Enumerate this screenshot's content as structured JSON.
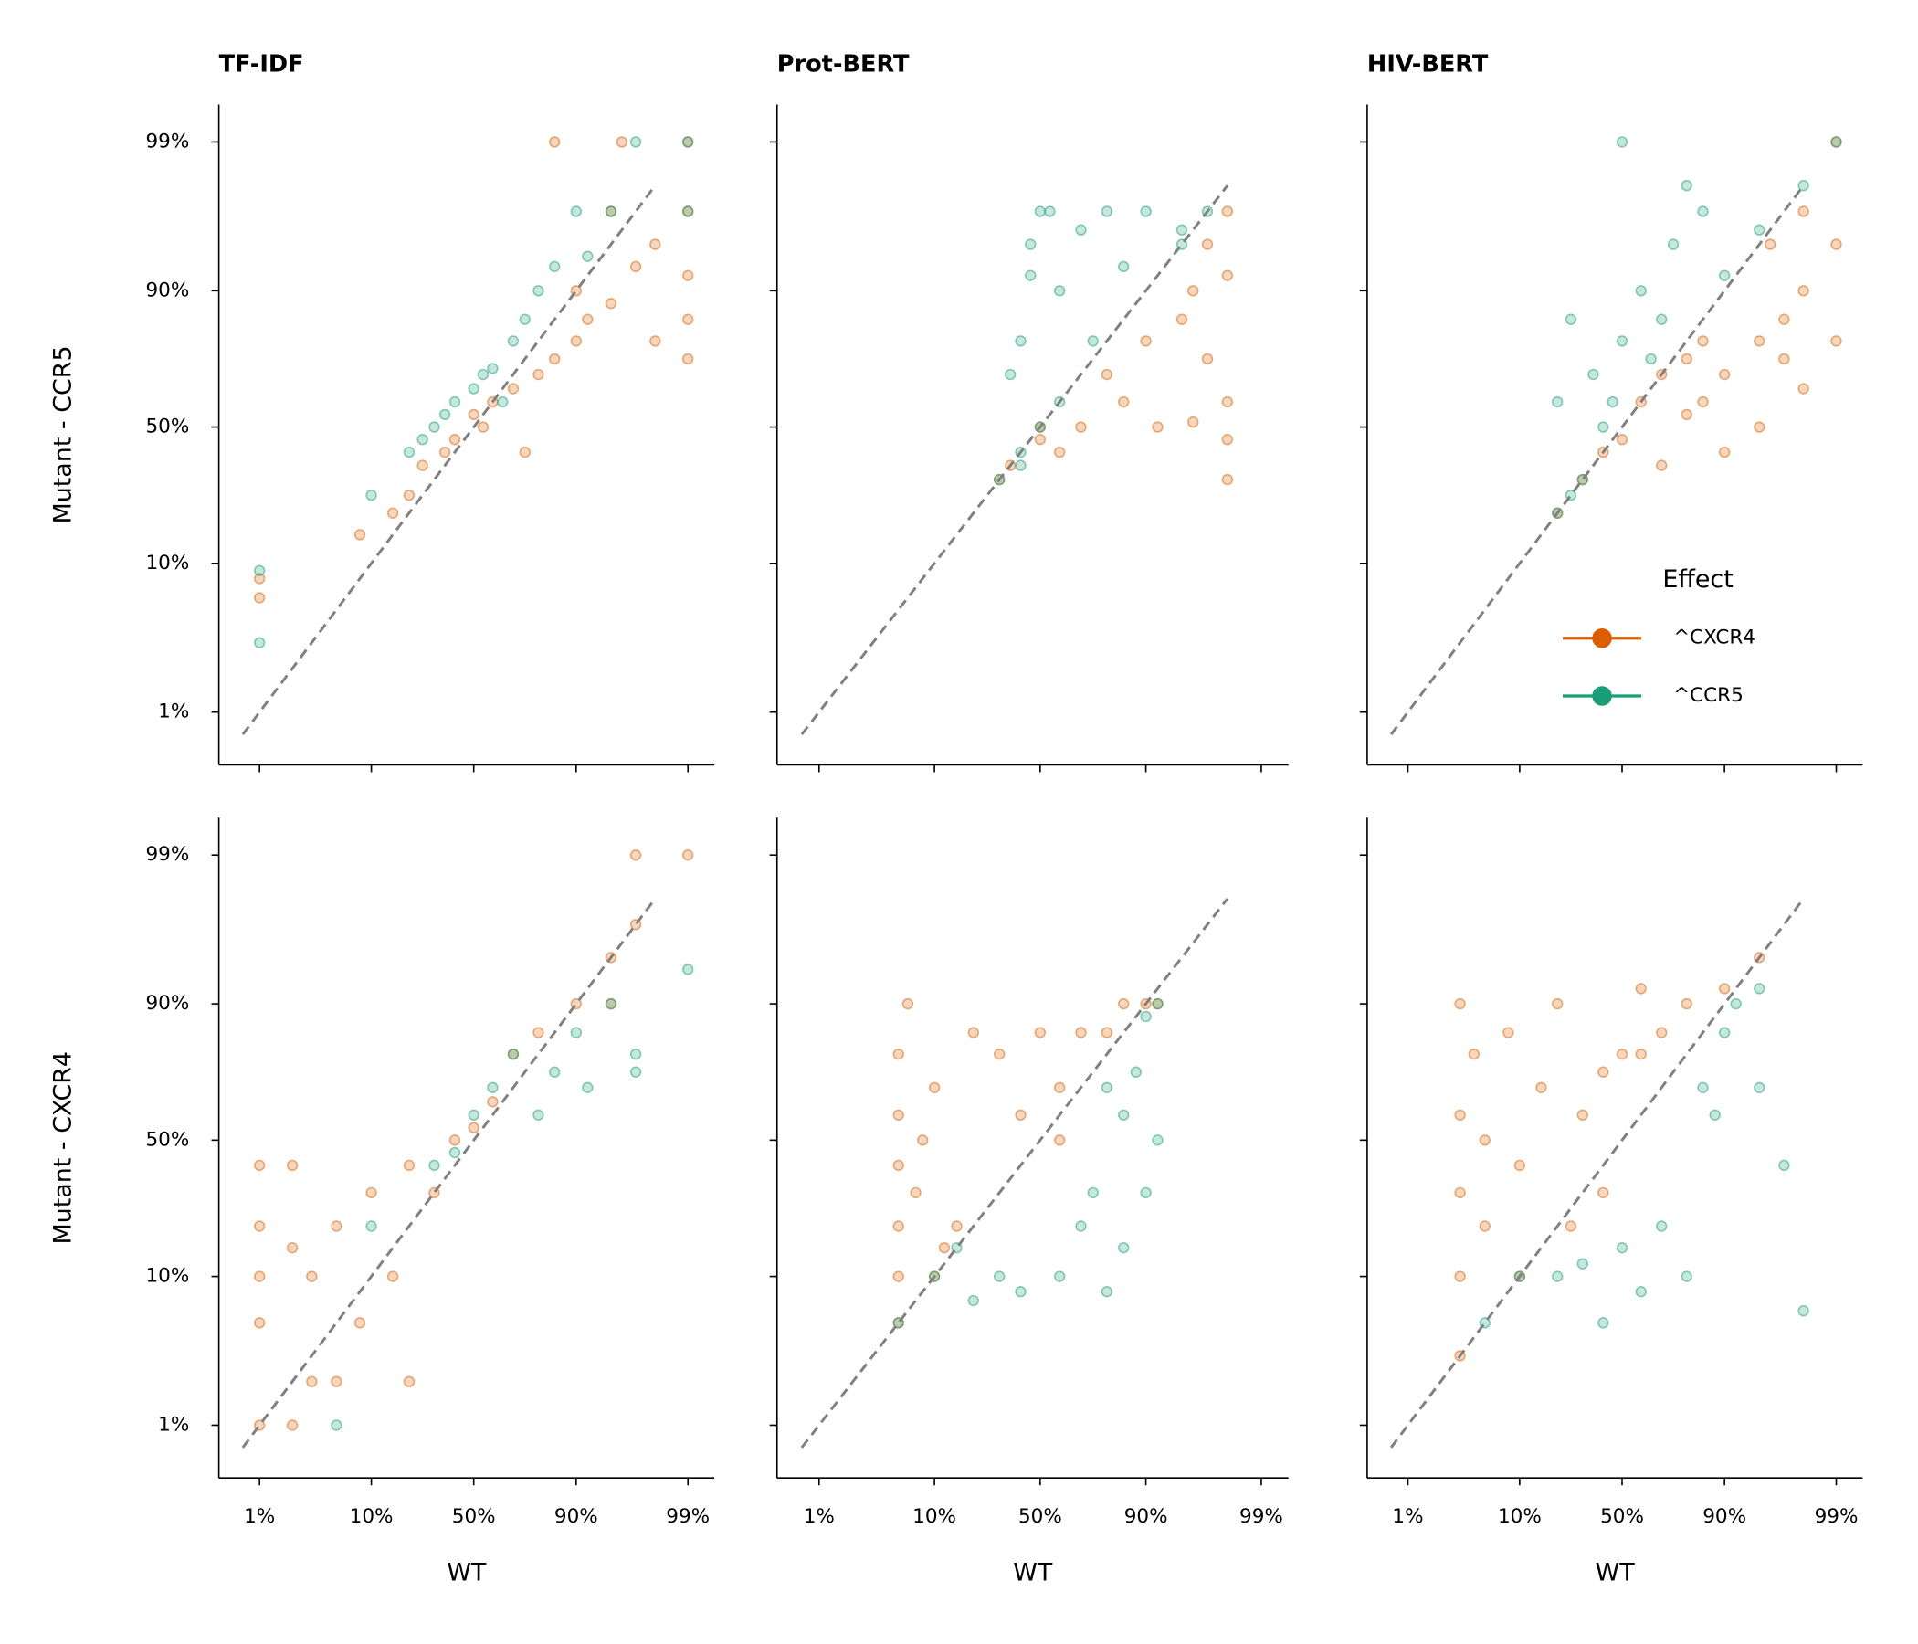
{
  "chart_data": [
    {
      "type": "scatter",
      "title": "TF-IDF",
      "ylabel": "Mutant - CCR5",
      "scale": "logit",
      "xlim": [
        0.42,
        99.43
      ],
      "ylim": [
        0.43,
        99.45
      ],
      "xticks": [
        1,
        10,
        50,
        90,
        99
      ],
      "yticks": [
        {
          "value": 1,
          "label": "1%"
        },
        {
          "value": 10,
          "label": "10%"
        },
        {
          "value": 50,
          "label": "50%"
        },
        {
          "value": 90,
          "label": "90%"
        },
        {
          "value": 99,
          "label": "99%"
        }
      ],
      "reference_line": {
        "from": 0.7,
        "to": 98,
        "color": "#808080",
        "dashed": true
      },
      "series": [
        {
          "color": "#d95f02",
          "x": [
            1,
            1,
            8,
            15,
            20,
            25,
            35,
            40,
            50,
            55,
            60,
            70,
            75,
            80,
            85,
            90,
            90,
            92,
            95,
            95,
            97,
            98,
            98,
            99,
            99,
            99,
            99,
            99,
            96,
            85
          ],
          "values": [
            6,
            8,
            15,
            20,
            25,
            35,
            40,
            45,
            55,
            50,
            60,
            65,
            40,
            70,
            75,
            80,
            90,
            85,
            88,
            97,
            93,
            80,
            95,
            75,
            85,
            92,
            97,
            99,
            99,
            99
          ]
        },
        {
          "color": "#1b9e77",
          "x": [
            1,
            1,
            10,
            20,
            25,
            30,
            35,
            40,
            50,
            55,
            60,
            65,
            70,
            75,
            80,
            85,
            90,
            92,
            95,
            97,
            99,
            99
          ],
          "values": [
            9,
            3,
            25,
            40,
            45,
            50,
            55,
            60,
            65,
            70,
            72,
            60,
            80,
            85,
            90,
            93,
            97,
            94,
            97,
            99,
            99,
            97
          ]
        }
      ]
    },
    {
      "type": "scatter",
      "title": "Prot-BERT",
      "scale": "logit",
      "xlim": [
        0.42,
        99.43
      ],
      "ylim": [
        0.43,
        99.45
      ],
      "xticks": [
        1,
        10,
        50,
        90,
        99
      ],
      "yticks": [
        1,
        10,
        50,
        90,
        99
      ],
      "reference_line": {
        "from": 0.7,
        "to": 98,
        "color": "#808080",
        "dashed": true
      },
      "series": [
        {
          "color": "#d95f02",
          "x": [
            30,
            35,
            50,
            50,
            60,
            70,
            80,
            85,
            90,
            92,
            95,
            96,
            97,
            98,
            98,
            98,
            98,
            97,
            98,
            96
          ],
          "values": [
            30,
            35,
            50,
            45,
            40,
            50,
            70,
            60,
            80,
            50,
            85,
            90,
            95,
            97,
            60,
            30,
            45,
            75,
            92,
            52
          ]
        },
        {
          "color": "#1b9e77",
          "x": [
            30,
            40,
            50,
            40,
            35,
            45,
            50,
            55,
            60,
            70,
            80,
            90,
            95,
            97,
            60,
            45,
            75,
            85,
            40,
            95
          ],
          "values": [
            30,
            40,
            50,
            80,
            70,
            95,
            97,
            97,
            90,
            96,
            97,
            97,
            96,
            97,
            60,
            92,
            80,
            93,
            35,
            95
          ]
        }
      ]
    },
    {
      "type": "scatter",
      "title": "HIV-BERT",
      "scale": "logit",
      "xlim": [
        0.42,
        99.43
      ],
      "ylim": [
        0.43,
        99.45
      ],
      "xticks": [
        1,
        10,
        50,
        90,
        99
      ],
      "yticks": [
        1,
        10,
        50,
        90,
        99
      ],
      "reference_line": {
        "from": 0.7,
        "to": 98,
        "color": "#808080",
        "dashed": true
      },
      "legend": {
        "title": "Effect",
        "loc": "lower right"
      },
      "series": [
        {
          "name": "^CXCR4",
          "color": "#d95f02",
          "x": [
            20,
            30,
            40,
            50,
            60,
            70,
            80,
            85,
            90,
            95,
            97,
            98,
            99,
            99,
            98,
            97,
            95,
            90,
            80,
            70,
            85,
            99,
            98,
            96
          ],
          "values": [
            20,
            30,
            40,
            45,
            60,
            70,
            75,
            80,
            70,
            80,
            85,
            90,
            95,
            99,
            97,
            75,
            50,
            40,
            55,
            35,
            60,
            80,
            65,
            95
          ]
        },
        {
          "name": "^CCR5",
          "color": "#1b9e77",
          "x": [
            20,
            25,
            30,
            20,
            25,
            35,
            40,
            50,
            60,
            70,
            80,
            85,
            90,
            95,
            99,
            50,
            75,
            65,
            45,
            98
          ],
          "values": [
            20,
            25,
            30,
            60,
            85,
            70,
            50,
            80,
            90,
            85,
            98,
            97,
            92,
            96,
            99,
            99,
            95,
            75,
            60,
            98
          ]
        }
      ]
    },
    {
      "type": "scatter",
      "ylabel": "Mutant - CXCR4",
      "xlabel": "WT",
      "scale": "logit",
      "xlim": [
        0.42,
        99.43
      ],
      "ylim": [
        0.43,
        99.45
      ],
      "xticks": [
        {
          "value": 1,
          "label": "1%"
        },
        {
          "value": 10,
          "label": "10%"
        },
        {
          "value": 50,
          "label": "50%"
        },
        {
          "value": 90,
          "label": "90%"
        },
        {
          "value": 99,
          "label": "99%"
        }
      ],
      "yticks": [
        {
          "value": 1,
          "label": "1%"
        },
        {
          "value": 10,
          "label": "10%"
        },
        {
          "value": 50,
          "label": "50%"
        },
        {
          "value": 90,
          "label": "90%"
        },
        {
          "value": 99,
          "label": "99%"
        }
      ],
      "reference_line": {
        "from": 0.7,
        "to": 98,
        "color": "#808080",
        "dashed": true
      },
      "series": [
        {
          "color": "#d95f02",
          "x": [
            1,
            1,
            1,
            1,
            1,
            2,
            2,
            2,
            3,
            3,
            5,
            5,
            8,
            10,
            15,
            20,
            20,
            30,
            40,
            50,
            60,
            70,
            80,
            90,
            95,
            97,
            99,
            97,
            95
          ],
          "values": [
            1,
            5,
            10,
            20,
            40,
            1,
            15,
            40,
            2,
            10,
            2,
            20,
            5,
            30,
            10,
            2,
            40,
            30,
            50,
            55,
            65,
            80,
            85,
            90,
            95,
            97,
            99,
            99,
            90
          ]
        },
        {
          "color": "#1b9e77",
          "x": [
            5,
            10,
            30,
            40,
            50,
            60,
            70,
            80,
            85,
            90,
            92,
            95,
            97,
            99,
            97
          ],
          "values": [
            1,
            20,
            40,
            45,
            60,
            70,
            80,
            60,
            75,
            85,
            70,
            90,
            80,
            94,
            75
          ]
        }
      ]
    },
    {
      "type": "scatter",
      "xlabel": "WT",
      "scale": "logit",
      "xlim": [
        0.42,
        99.43
      ],
      "ylim": [
        0.43,
        99.45
      ],
      "xticks": [
        {
          "value": 1,
          "label": "1%"
        },
        {
          "value": 10,
          "label": "10%"
        },
        {
          "value": 50,
          "label": "50%"
        },
        {
          "value": 90,
          "label": "90%"
        },
        {
          "value": 99,
          "label": "99%"
        }
      ],
      "yticks": [
        1,
        10,
        50,
        90,
        99
      ],
      "reference_line": {
        "from": 0.7,
        "to": 98,
        "color": "#808080",
        "dashed": true
      },
      "series": [
        {
          "color": "#d95f02",
          "x": [
            5,
            5,
            5,
            5,
            5,
            5,
            6,
            7,
            8,
            10,
            10,
            12,
            15,
            20,
            30,
            50,
            60,
            70,
            80,
            85,
            90,
            92,
            60,
            40
          ],
          "values": [
            5,
            10,
            20,
            40,
            60,
            80,
            90,
            30,
            50,
            10,
            70,
            15,
            20,
            85,
            80,
            85,
            70,
            85,
            85,
            90,
            90,
            90,
            50,
            60
          ]
        },
        {
          "color": "#1b9e77",
          "x": [
            5,
            10,
            15,
            20,
            30,
            40,
            60,
            80,
            85,
            90,
            92,
            85,
            75,
            80,
            90,
            88,
            92,
            70
          ],
          "values": [
            5,
            10,
            15,
            7,
            10,
            8,
            10,
            8,
            15,
            30,
            50,
            60,
            30,
            70,
            88,
            75,
            90,
            20
          ]
        }
      ]
    },
    {
      "type": "scatter",
      "xlabel": "WT",
      "scale": "logit",
      "xlim": [
        0.42,
        99.43
      ],
      "ylim": [
        0.43,
        99.45
      ],
      "xticks": [
        {
          "value": 1,
          "label": "1%"
        },
        {
          "value": 10,
          "label": "10%"
        },
        {
          "value": 50,
          "label": "50%"
        },
        {
          "value": 90,
          "label": "90%"
        },
        {
          "value": 99,
          "label": "99%"
        }
      ],
      "yticks": [
        1,
        10,
        50,
        90,
        99
      ],
      "reference_line": {
        "from": 0.7,
        "to": 98,
        "color": "#808080",
        "dashed": true
      },
      "series": [
        {
          "color": "#d95f02",
          "x": [
            3,
            3,
            3,
            3,
            3,
            4,
            5,
            5,
            8,
            10,
            10,
            15,
            20,
            30,
            40,
            50,
            60,
            70,
            80,
            90,
            95,
            40,
            25,
            60
          ],
          "values": [
            3,
            10,
            30,
            60,
            90,
            80,
            50,
            20,
            85,
            10,
            40,
            70,
            90,
            60,
            75,
            80,
            80,
            85,
            90,
            92,
            95,
            30,
            20,
            92
          ]
        },
        {
          "color": "#1b9e77",
          "x": [
            5,
            10,
            20,
            30,
            40,
            50,
            60,
            70,
            80,
            85,
            90,
            92,
            95,
            88,
            95,
            97,
            98
          ],
          "values": [
            5,
            10,
            10,
            12,
            5,
            15,
            8,
            20,
            10,
            70,
            85,
            90,
            92,
            60,
            70,
            40,
            6
          ]
        }
      ]
    }
  ]
}
